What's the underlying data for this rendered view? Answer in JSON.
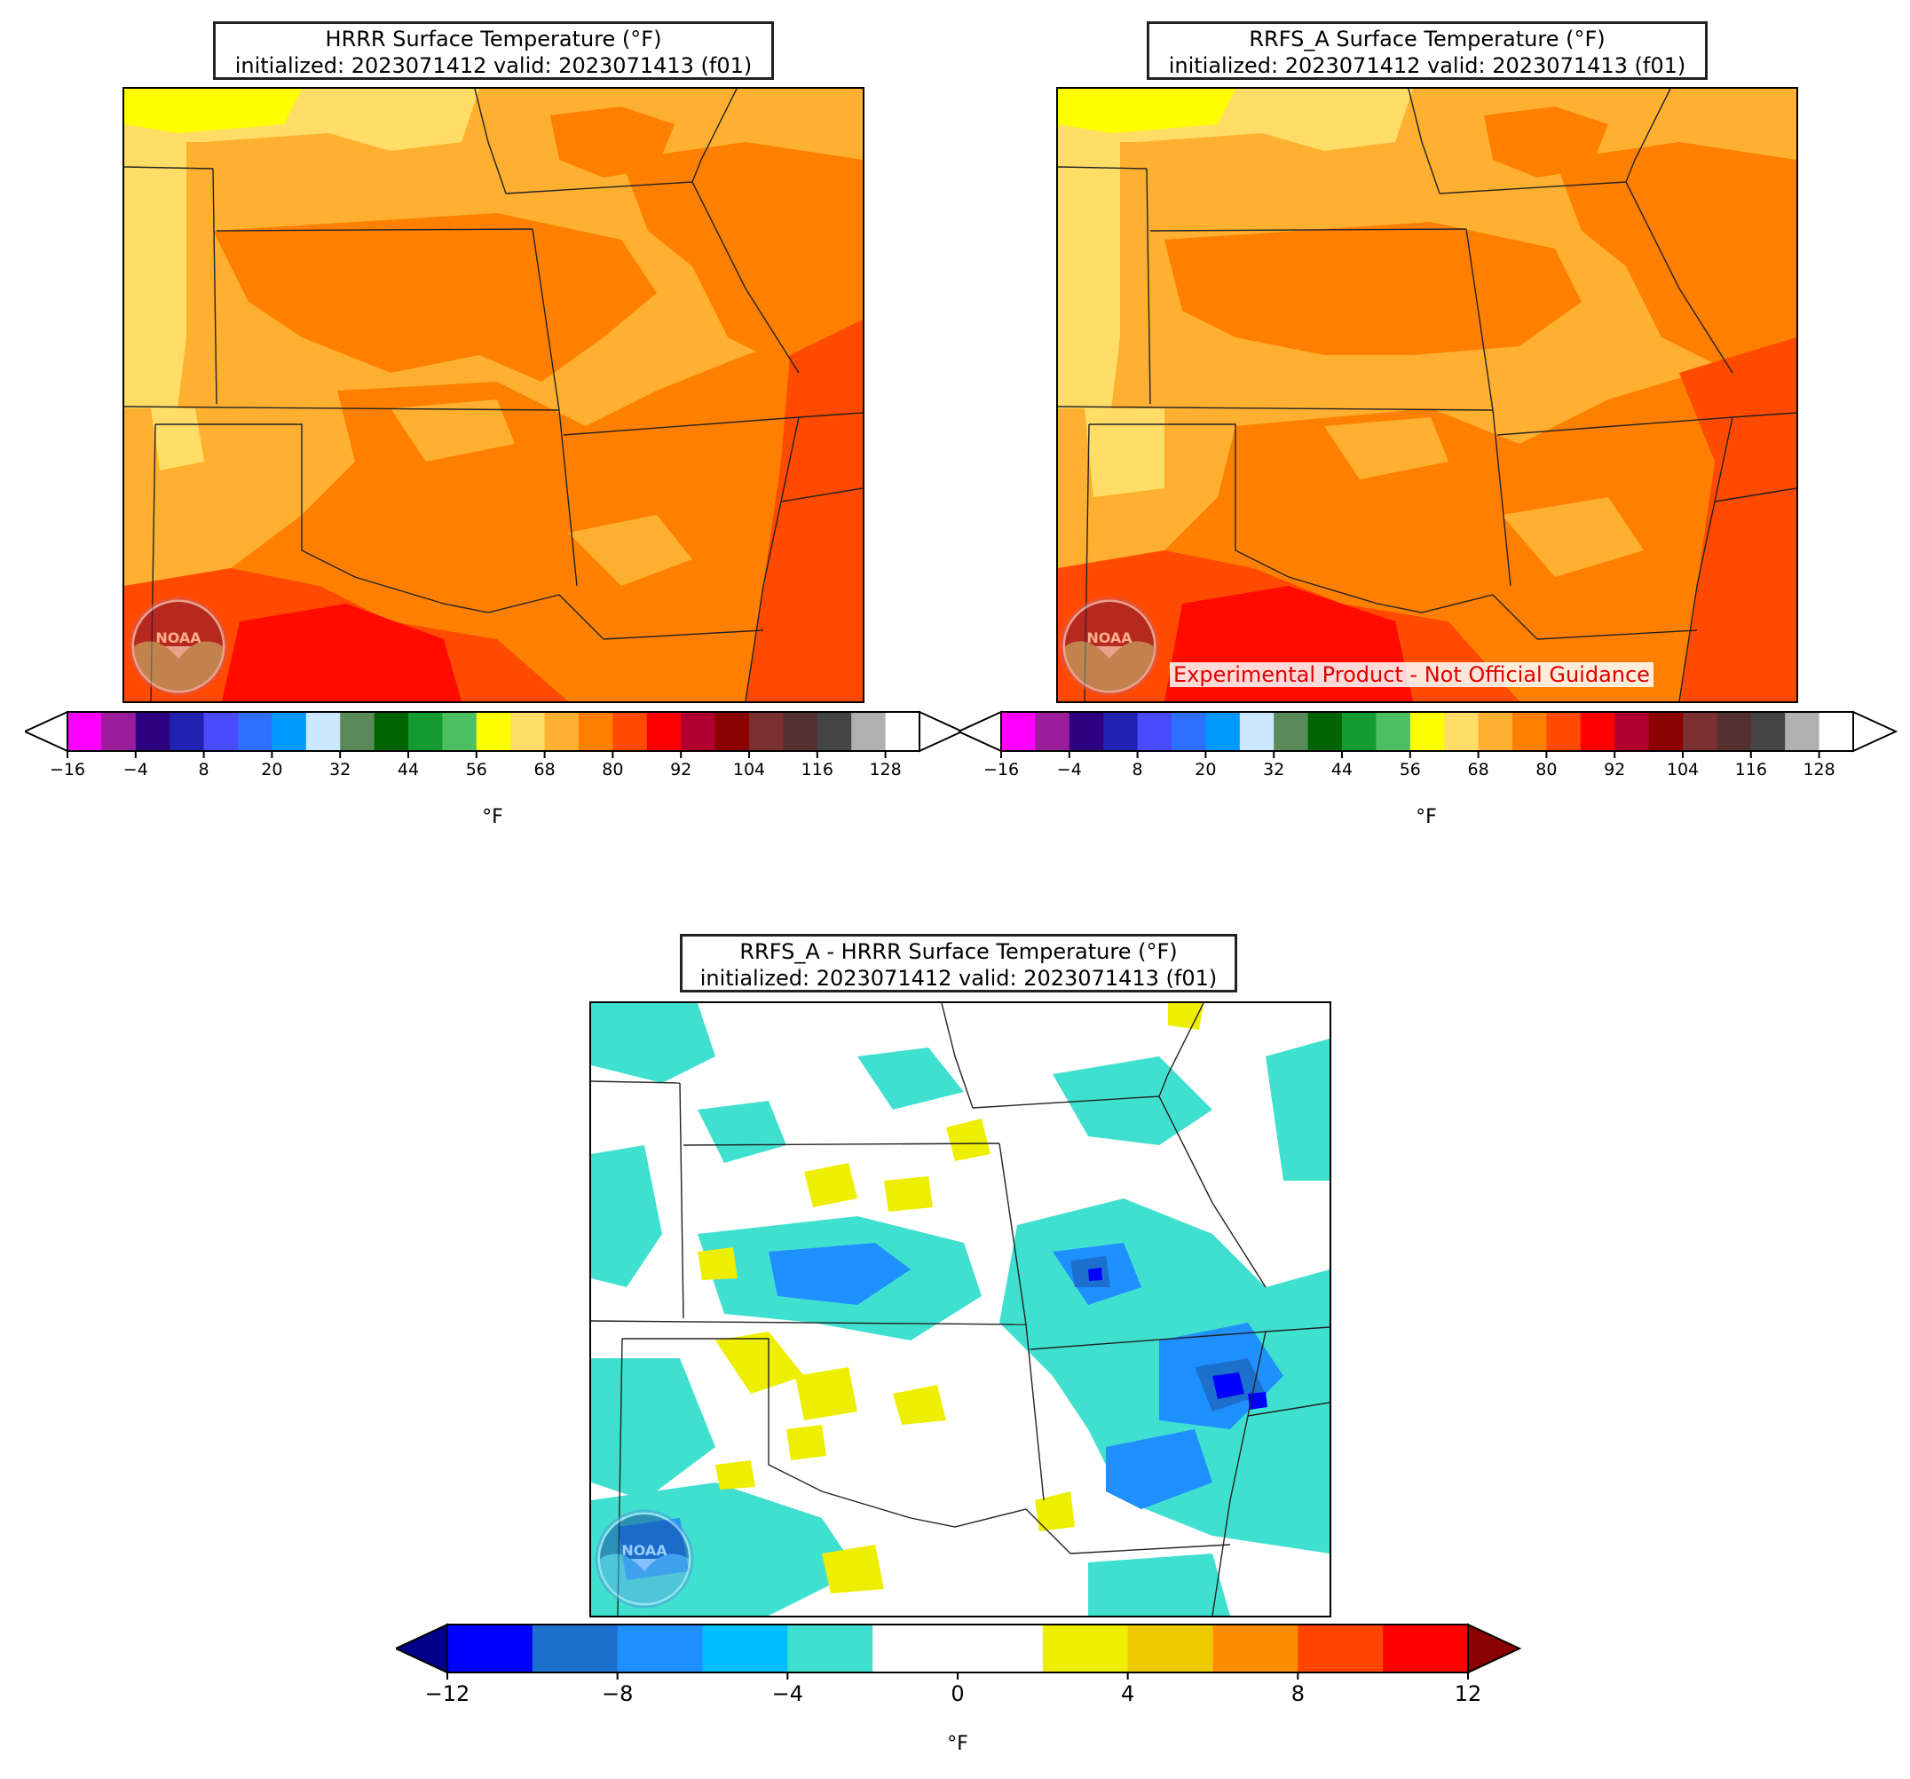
{
  "panels": {
    "hrrr": {
      "title_line1": "HRRR Surface Temperature (°F)",
      "title_line2": "initialized: 2023071412 valid: 2023071413 (f01)"
    },
    "rrfs": {
      "title_line1": "RRFS_A Surface Temperature (°F)",
      "title_line2": "initialized: 2023071412 valid: 2023071413 (f01)",
      "disclaimer": "Experimental Product - Not Official Guidance"
    },
    "diff": {
      "title_line1": "RRFS_A - HRRR Surface Temperature (°F)",
      "title_line2": "initialized: 2023071412 valid: 2023071413 (f01)"
    }
  },
  "temp_colorbar": {
    "unit": "°F",
    "ticks": [
      "−16",
      "−4",
      "8",
      "20",
      "32",
      "44",
      "56",
      "68",
      "80",
      "92",
      "104",
      "116",
      "128"
    ],
    "colors": [
      "#ff00ff",
      "#9b1d9b",
      "#2d0080",
      "#2222b0",
      "#4a4aff",
      "#2f6fff",
      "#0099ff",
      "#cce8ff",
      "#5a8a5a",
      "#006400",
      "#139a30",
      "#4cc060",
      "#ffff00",
      "#ffdd66",
      "#ffb030",
      "#ff8000",
      "#ff4a00",
      "#ff0000",
      "#b00030",
      "#8b0000",
      "#7a3030",
      "#553030",
      "#444444",
      "#b0b0b0",
      "#ffffff"
    ],
    "extend_low": "#ffffff",
    "extend_high": "#ffffff"
  },
  "diff_colorbar": {
    "unit": "°F",
    "ticks": [
      "−12",
      "−8",
      "−4",
      "0",
      "4",
      "8",
      "12"
    ],
    "colors": [
      "#0000ff",
      "#1c6fcc",
      "#1e90ff",
      "#00bfff",
      "#40e0d0",
      "#ffffff",
      "#ffffff",
      "#eeee00",
      "#eec900",
      "#ff8c00",
      "#ff4500",
      "#ff0000"
    ],
    "extend_low": "#00008b",
    "extend_high": "#8b0000"
  },
  "logo": {
    "text": "NOAA"
  }
}
